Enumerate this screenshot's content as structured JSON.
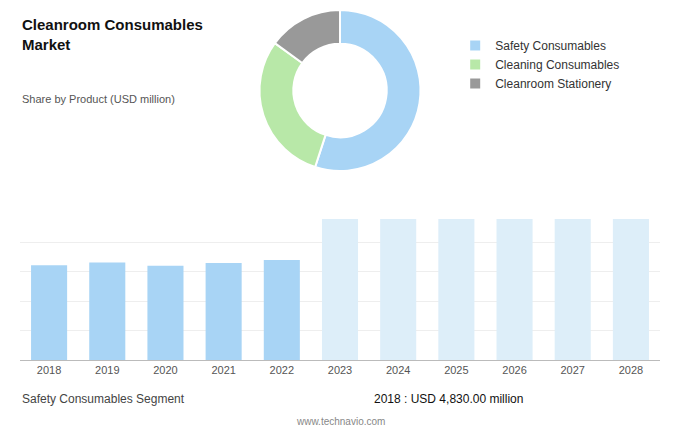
{
  "chart_data": [
    {
      "type": "pie",
      "title": "Cleanroom Consumables\nMarket",
      "subtitle": "Share by Product (USD million)",
      "categories": [
        "Safety Consumables",
        "Cleaning Consumables",
        "Cleanroom Stationery"
      ],
      "values": [
        55,
        30,
        15
      ],
      "colors": [
        "#a8d4f5",
        "#b8e8a8",
        "#999999"
      ],
      "legend": "right"
    },
    {
      "type": "bar",
      "categories": [
        "2018",
        "2019",
        "2020",
        "2021",
        "2022",
        "2023",
        "2024",
        "2025",
        "2026",
        "2027",
        "2028"
      ],
      "values": [
        4830,
        4980,
        4810,
        4950,
        5100,
        7200,
        7200,
        7200,
        7200,
        7200,
        7200
      ],
      "colors": [
        "#a8d4f5",
        "#a8d4f5",
        "#a8d4f5",
        "#a8d4f5",
        "#a8d4f5",
        "#ddeef9",
        "#ddeef9",
        "#ddeef9",
        "#ddeef9",
        "#ddeef9",
        "#ddeef9"
      ],
      "ylim": [
        0,
        7500
      ],
      "yticks": [
        1500,
        3000,
        4500,
        6000,
        7500
      ],
      "grid": true,
      "tick_labels": "x",
      "annotations": [
        "Safety Consumables Segment",
        "2018 : USD 4,830.00 million",
        "www.technavio.com"
      ]
    }
  ]
}
